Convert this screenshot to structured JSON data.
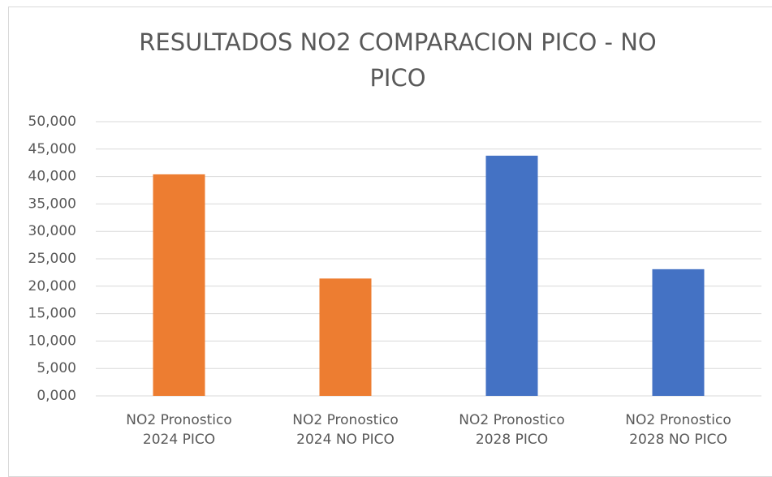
{
  "chart_data": {
    "type": "bar",
    "title": "RESULTADOS NO2 COMPARACION PICO - NO PICO",
    "categories": [
      "NO2 Pronostico\n2024 PICO",
      "NO2 Pronostico\n2024 NO PICO",
      "NO2 Pronostico\n2028 PICO",
      "NO2 Pronostico\n2028 NO PICO"
    ],
    "values": [
      40.4,
      21.4,
      43.8,
      23.1
    ],
    "colors": [
      "#ed7d31",
      "#ed7d31",
      "#4472c4",
      "#4472c4"
    ],
    "ylim": [
      0,
      50
    ],
    "yticks": [
      {
        "value": 0,
        "label": "0,000"
      },
      {
        "value": 5,
        "label": "5,000"
      },
      {
        "value": 10,
        "label": "10,000"
      },
      {
        "value": 15,
        "label": "15,000"
      },
      {
        "value": 20,
        "label": "20,000"
      },
      {
        "value": 25,
        "label": "25,000"
      },
      {
        "value": 30,
        "label": "30,000"
      },
      {
        "value": 35,
        "label": "35,000"
      },
      {
        "value": 40,
        "label": "40,000"
      },
      {
        "value": 45,
        "label": "45,000"
      },
      {
        "value": 50,
        "label": "50,000"
      }
    ],
    "grid": true
  }
}
